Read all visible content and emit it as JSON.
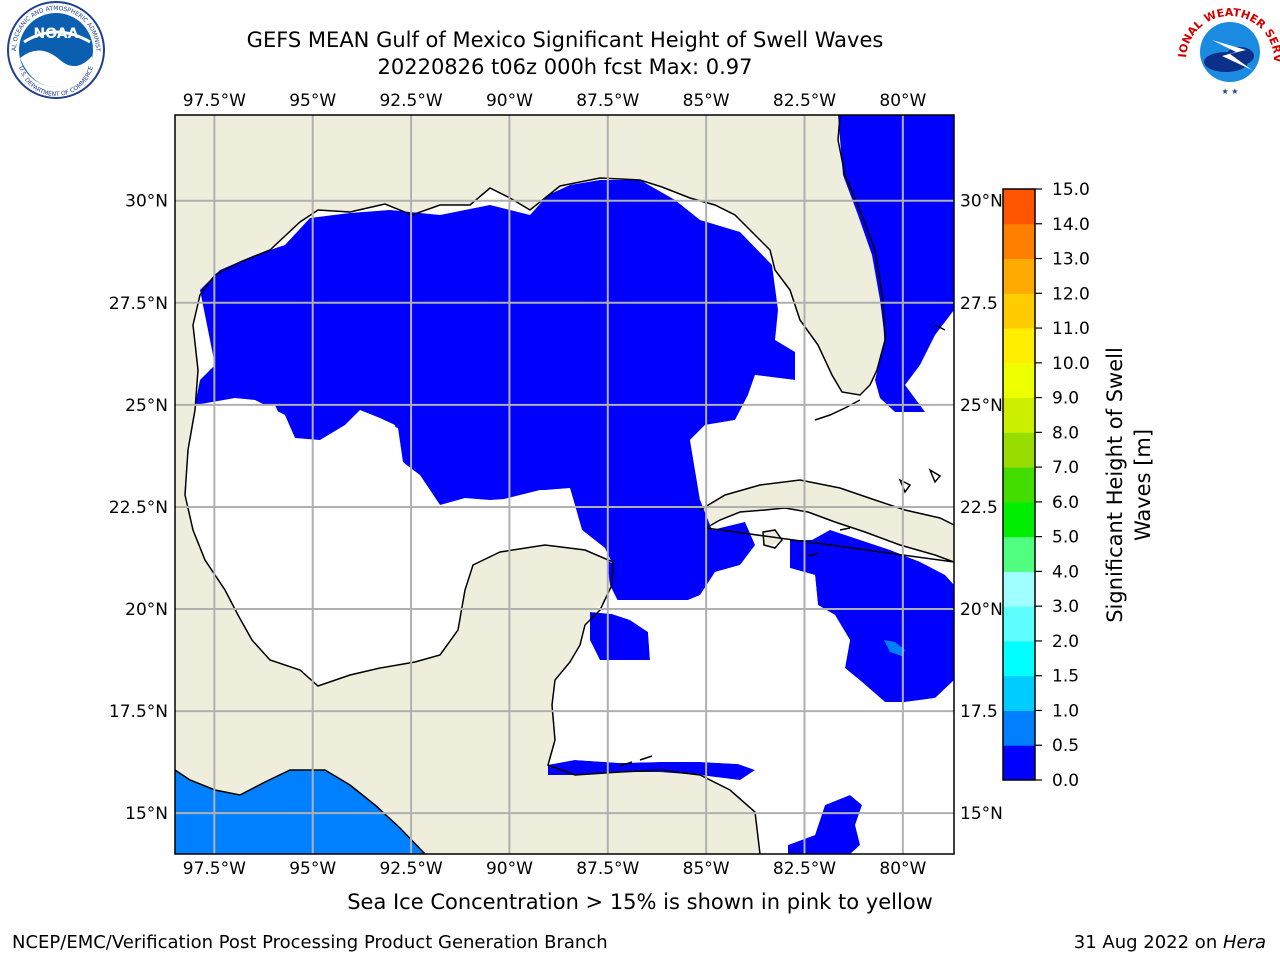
{
  "title": {
    "line1": "GEFS MEAN Gulf of Mexico Significant Height of Swell Waves",
    "line2": "20220826 t06z 000h fcst   Max: 0.97"
  },
  "logos": {
    "noaa_text": "NOAA",
    "noaa_ring_top": "NATIONAL OCEANIC AND ATMOSPHERIC ADMINISTRATION",
    "noaa_ring_bottom": "U.S. DEPARTMENT OF COMMERCE",
    "nws_ring": "NATIONAL WEATHER SERVICE"
  },
  "map": {
    "lon_range": [
      -98.5,
      -78.7
    ],
    "lat_range": [
      14.0,
      32.1
    ],
    "lon_ticks": [
      {
        "value": -97.5,
        "label": "97.5°W"
      },
      {
        "value": -95.0,
        "label": "95°W"
      },
      {
        "value": -92.5,
        "label": "92.5°W"
      },
      {
        "value": -90.0,
        "label": "90°W"
      },
      {
        "value": -87.5,
        "label": "87.5°W"
      },
      {
        "value": -85.0,
        "label": "85°W"
      },
      {
        "value": -82.5,
        "label": "82.5°W"
      },
      {
        "value": -80.0,
        "label": "80°W"
      }
    ],
    "lat_ticks_left": [
      {
        "value": 30.0,
        "label": "30°N"
      },
      {
        "value": 27.5,
        "label": "27.5°N"
      },
      {
        "value": 25.0,
        "label": "25°N"
      },
      {
        "value": 22.5,
        "label": "22.5°N"
      },
      {
        "value": 20.0,
        "label": "20°N"
      },
      {
        "value": 17.5,
        "label": "17.5°N"
      },
      {
        "value": 15.0,
        "label": "15°N"
      }
    ],
    "lat_ticks_right": [
      {
        "value": 30.0,
        "label": "30°N"
      },
      {
        "value": 27.5,
        "label": "27.5"
      },
      {
        "value": 25.0,
        "label": "25°N"
      },
      {
        "value": 22.5,
        "label": "22.5"
      },
      {
        "value": 20.0,
        "label": "20°N"
      },
      {
        "value": 17.5,
        "label": "17.5"
      },
      {
        "value": 15.0,
        "label": "15°N"
      }
    ],
    "grid": true,
    "colors": {
      "land": "#efeedc",
      "ocean_missing": "#ffffff",
      "gridline": "#b0b0b0",
      "coast": "#000000"
    }
  },
  "colorbar": {
    "label": "Significant Height of Swell Waves [m]",
    "label_line1": "Significant Height of Swell",
    "label_line2": "Waves [m]",
    "levels": [
      0.0,
      0.5,
      1.0,
      1.5,
      2.0,
      3.0,
      4.0,
      5.0,
      6.0,
      7.0,
      8.0,
      9.0,
      10.0,
      11.0,
      12.0,
      13.0,
      14.0,
      15.0
    ],
    "tick_labels": [
      "0.0",
      "0.5",
      "1.0",
      "1.5",
      "2.0",
      "3.0",
      "4.0",
      "5.0",
      "6.0",
      "7.0",
      "8.0",
      "9.0",
      "10.0",
      "11.0",
      "12.0",
      "13.0",
      "14.0",
      "15.0"
    ],
    "colors": [
      "#0000ff",
      "#0080ff",
      "#00ccff",
      "#00ffff",
      "#60ffff",
      "#a0ffff",
      "#50ff80",
      "#00ee00",
      "#44dd00",
      "#99dd00",
      "#ccee00",
      "#eeff00",
      "#ffee00",
      "#ffcc00",
      "#ffaa00",
      "#ff8000",
      "#ff5500",
      "#ff2000",
      "#ff0000"
    ]
  },
  "chart_data": {
    "type": "heatmap",
    "title": "GEFS MEAN Gulf of Mexico Significant Height of Swell Waves",
    "subtitle": "20220826 t06z 000h fcst   Max: 0.97",
    "value_unit": "m",
    "max_value": 0.97,
    "regions": [
      {
        "band": "0.0-0.5",
        "color": "#0000ff",
        "area": "northern and central Gulf of Mexico"
      },
      {
        "band": "0.0-0.5",
        "color": "#0000ff",
        "area": "Atlantic east of Florida"
      },
      {
        "band": "0.0-0.5",
        "color": "#0000ff",
        "area": "Caribbean south of Cuba"
      },
      {
        "band": "0.5-1.0",
        "color": "#0080ff",
        "area": "Pacific south of Mexico"
      },
      {
        "band": "0.5-1.0",
        "color": "#0080ff",
        "area": "small patch near 80.2°W 19.0°N"
      }
    ]
  },
  "notes": {
    "sea_ice": "Sea Ice Concentration > 15% is shown in pink to yellow"
  },
  "footer": {
    "left": "NCEP/EMC/Verification Post Processing Product Generation Branch",
    "right_date": "31 Aug 2022 on ",
    "right_host": "Hera"
  }
}
